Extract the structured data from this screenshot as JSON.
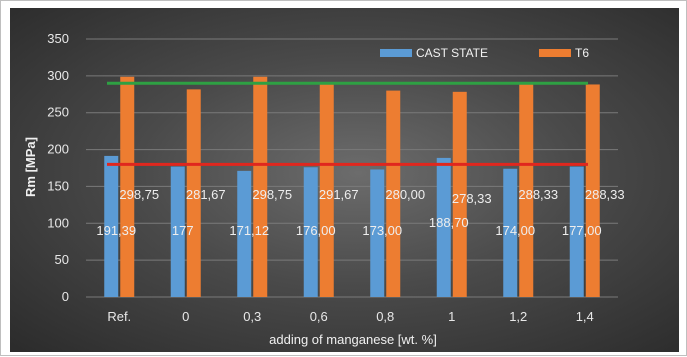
{
  "chart_data": {
    "type": "bar",
    "categories": [
      "Ref.",
      "0",
      "0,3",
      "0,6",
      "0,8",
      "1",
      "1,2",
      "1,4"
    ],
    "series": [
      {
        "name": "CAST STATE",
        "color": "#5b9bd5",
        "values": [
          191.39,
          177,
          171.12,
          176.0,
          173.0,
          188.7,
          174.0,
          177.0
        ],
        "labels": [
          "191,39",
          "177",
          "171,12",
          "176,00",
          "173,00",
          "188,70",
          "174,00",
          "177,00"
        ]
      },
      {
        "name": "T6",
        "color": "#ed7d31",
        "values": [
          298.75,
          281.67,
          298.75,
          291.67,
          280.0,
          278.33,
          288.33,
          288.33
        ],
        "labels": [
          "298,75",
          "281,67",
          "298,75",
          "291,67",
          "280,00",
          "278,33",
          "288,33",
          "288,33"
        ]
      }
    ],
    "reference_lines": [
      {
        "value": 290,
        "color": "#2ea043"
      },
      {
        "value": 180,
        "color": "#e0271e"
      }
    ],
    "xlabel": "adding of manganese [wt. %]",
    "ylabel": "Rm [MPa]",
    "ylim": [
      0,
      350
    ],
    "yticks": [
      "0",
      "50",
      "100",
      "150",
      "200",
      "250",
      "300",
      "350"
    ],
    "grid": true,
    "legend": "top-right"
  }
}
